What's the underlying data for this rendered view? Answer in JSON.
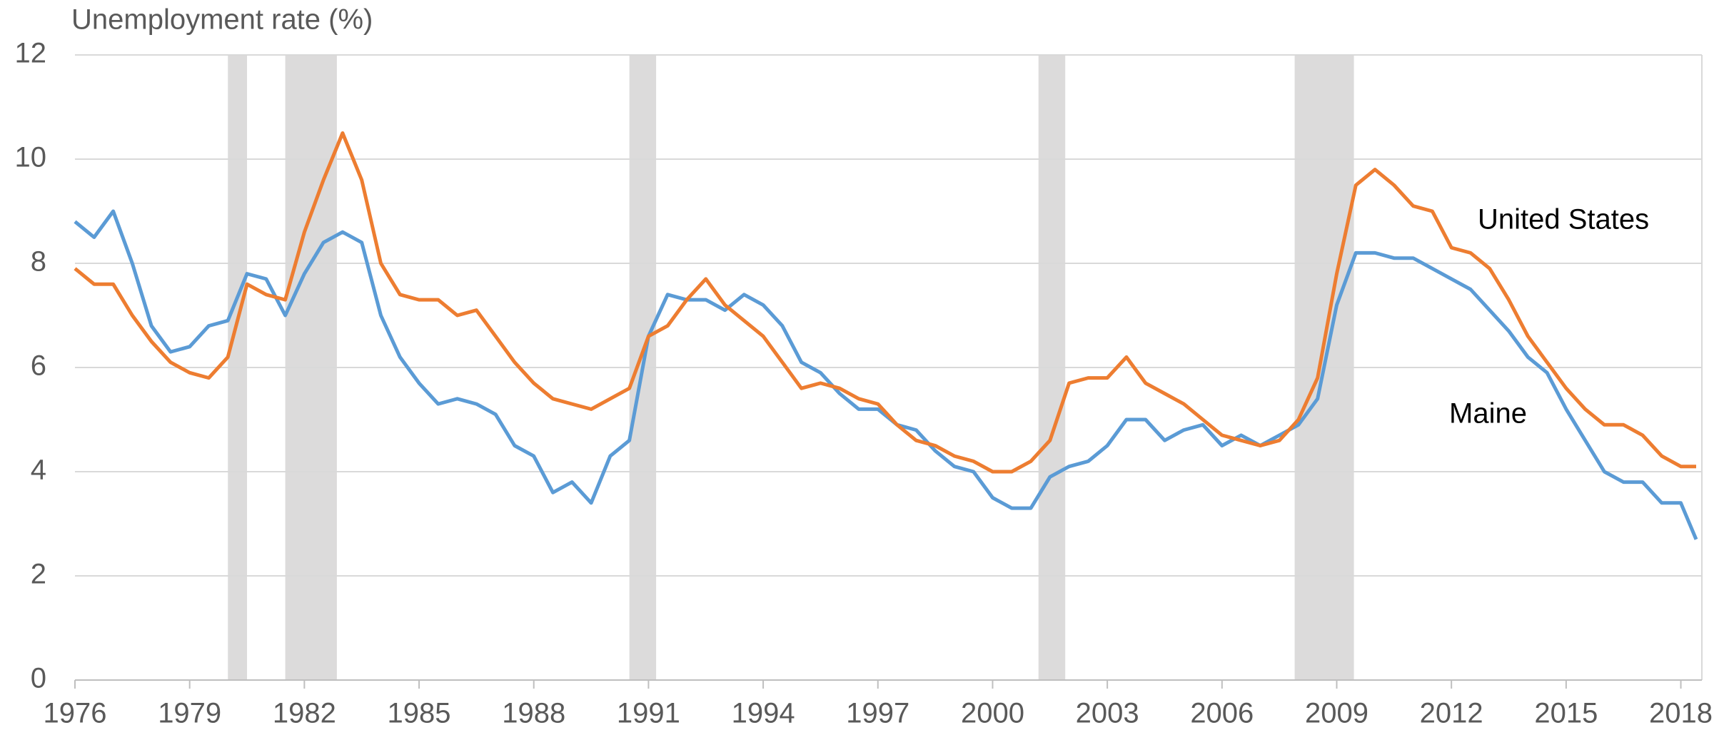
{
  "chart_data": {
    "type": "line",
    "y_axis_label": "Unemployment rate (%)",
    "x": [
      1976,
      1976.5,
      1977,
      1977.5,
      1978,
      1978.5,
      1979,
      1979.5,
      1980,
      1980.5,
      1981,
      1981.5,
      1982,
      1982.5,
      1983,
      1983.5,
      1984,
      1984.5,
      1985,
      1985.5,
      1986,
      1986.5,
      1987,
      1987.5,
      1988,
      1988.5,
      1989,
      1989.5,
      1990,
      1990.5,
      1991,
      1991.5,
      1992,
      1992.5,
      1993,
      1993.5,
      1994,
      1994.5,
      1995,
      1995.5,
      1996,
      1996.5,
      1997,
      1997.5,
      1998,
      1998.5,
      1999,
      1999.5,
      2000,
      2000.5,
      2001,
      2001.5,
      2002,
      2002.5,
      2003,
      2003.5,
      2004,
      2004.5,
      2005,
      2005.5,
      2006,
      2006.5,
      2007,
      2007.5,
      2008,
      2008.5,
      2009,
      2009.5,
      2010,
      2010.5,
      2011,
      2011.5,
      2012,
      2012.5,
      2013,
      2013.5,
      2014,
      2014.5,
      2015,
      2015.5,
      2016,
      2016.5,
      2017,
      2017.5,
      2018,
      2018.4
    ],
    "series": [
      {
        "name": "Maine",
        "color": "#5b9bd5",
        "values": [
          8.8,
          8.5,
          9.0,
          8.0,
          6.8,
          6.3,
          6.4,
          6.8,
          6.9,
          7.8,
          7.7,
          7.0,
          7.8,
          8.4,
          8.6,
          8.4,
          7.0,
          6.2,
          5.7,
          5.3,
          5.4,
          5.3,
          5.1,
          4.5,
          4.3,
          3.6,
          3.8,
          3.4,
          4.3,
          4.6,
          6.6,
          7.4,
          7.3,
          7.3,
          7.1,
          7.4,
          7.2,
          6.8,
          6.1,
          5.9,
          5.5,
          5.2,
          5.2,
          4.9,
          4.8,
          4.4,
          4.1,
          4.0,
          3.5,
          3.3,
          3.3,
          3.9,
          4.1,
          4.2,
          4.5,
          5.0,
          5.0,
          4.6,
          4.8,
          4.9,
          4.5,
          4.7,
          4.5,
          4.7,
          4.9,
          5.4,
          7.2,
          8.2,
          8.2,
          8.1,
          8.1,
          7.9,
          7.7,
          7.5,
          7.1,
          6.7,
          6.2,
          5.9,
          5.2,
          4.6,
          4.0,
          3.8,
          3.8,
          3.4,
          3.4,
          2.7
        ]
      },
      {
        "name": "United States",
        "color": "#ed7d31",
        "values": [
          7.9,
          7.6,
          7.6,
          7.0,
          6.5,
          6.1,
          5.9,
          5.8,
          6.2,
          7.6,
          7.4,
          7.3,
          8.6,
          9.6,
          10.5,
          9.6,
          8.0,
          7.4,
          7.3,
          7.3,
          7.0,
          7.1,
          6.6,
          6.1,
          5.7,
          5.4,
          5.3,
          5.2,
          5.4,
          5.6,
          6.6,
          6.8,
          7.3,
          7.7,
          7.2,
          6.9,
          6.6,
          6.1,
          5.6,
          5.7,
          5.6,
          5.4,
          5.3,
          4.9,
          4.6,
          4.5,
          4.3,
          4.2,
          4.0,
          4.0,
          4.2,
          4.6,
          5.7,
          5.8,
          5.8,
          6.2,
          5.7,
          5.5,
          5.3,
          5.0,
          4.7,
          4.6,
          4.5,
          4.6,
          5.0,
          5.8,
          7.8,
          9.5,
          9.8,
          9.5,
          9.1,
          9.0,
          8.3,
          8.2,
          7.9,
          7.3,
          6.6,
          6.1,
          5.6,
          5.2,
          4.9,
          4.9,
          4.7,
          4.3,
          4.1,
          4.1
        ]
      }
    ],
    "recessions": [
      [
        1980.0,
        1980.5
      ],
      [
        1981.5,
        1982.85
      ],
      [
        1990.5,
        1991.2
      ],
      [
        2001.2,
        2001.9
      ],
      [
        2007.9,
        2009.45
      ]
    ],
    "recession_color": "#dcdbdb",
    "xlim": [
      1976,
      2018.55
    ],
    "xticks": [
      1976,
      1979,
      1982,
      1985,
      1988,
      1991,
      1994,
      1997,
      2000,
      2003,
      2006,
      2009,
      2012,
      2015,
      2018
    ],
    "ylim": [
      0,
      12
    ],
    "yticks": [
      0,
      2,
      4,
      6,
      8,
      10,
      12
    ],
    "grid": true
  }
}
